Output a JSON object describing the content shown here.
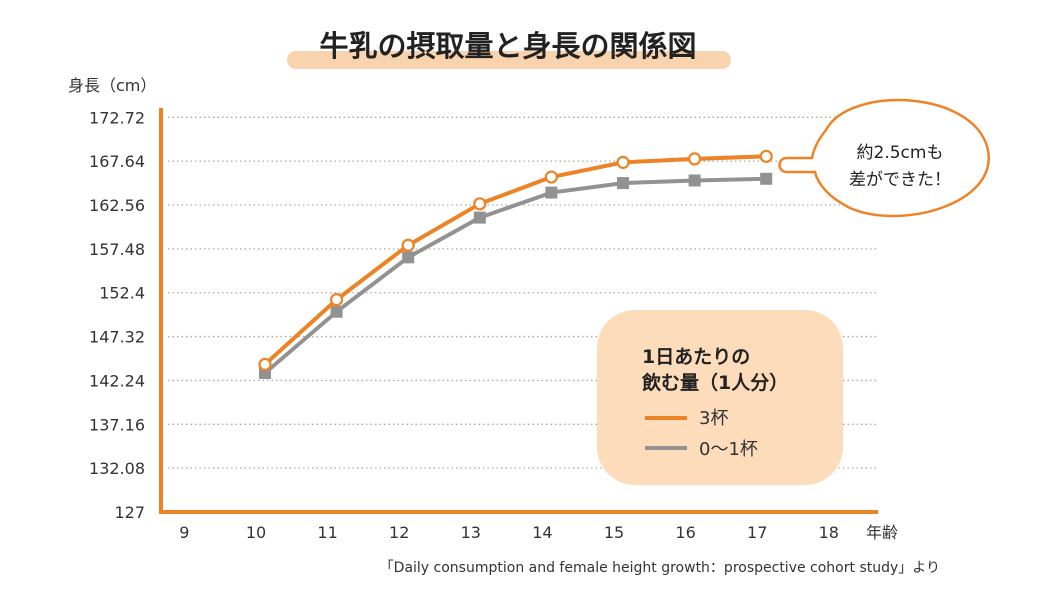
{
  "chart_data": {
    "type": "line",
    "title": "牛乳の摂取量と身長の関係図",
    "ylabel": "身長（cm）",
    "xlabel": "年齢",
    "ylim": [
      127,
      172.72
    ],
    "xlim": [
      9,
      18
    ],
    "yticks": [
      "127",
      "132.08",
      "137.16",
      "142.24",
      "147.32",
      "152.4",
      "157.48",
      "162.56",
      "167.64",
      "172.72"
    ],
    "xticks": [
      "9",
      "10",
      "11",
      "12",
      "13",
      "14",
      "15",
      "16",
      "17",
      "18"
    ],
    "grid": true,
    "x": [
      10,
      11,
      12,
      13,
      14,
      15,
      16,
      17
    ],
    "series": [
      {
        "name": "3杯",
        "color": "#ee8326",
        "marker": "open-circle",
        "values": [
          144.1,
          151.6,
          157.9,
          162.7,
          165.8,
          167.5,
          167.9,
          168.2
        ]
      },
      {
        "name": "0〜1杯",
        "color": "#929292",
        "marker": "square",
        "values": [
          143.1,
          150.2,
          156.5,
          161.1,
          164.0,
          165.1,
          165.4,
          165.6
        ]
      }
    ],
    "legend": {
      "title_line1": "1日あたりの",
      "title_line2": "飲む量（1人分）",
      "placement": "bottom-right"
    },
    "annotation": {
      "line1": "約2.5cmも",
      "line2": "差ができた！"
    },
    "source": "「Daily consumption and female height growth：prospective cohort study」より"
  },
  "colors": {
    "accent": "#ee8326",
    "gray": "#929292",
    "legend_bg": "#fddcbc",
    "title_highlight": "#f9d3ae"
  }
}
